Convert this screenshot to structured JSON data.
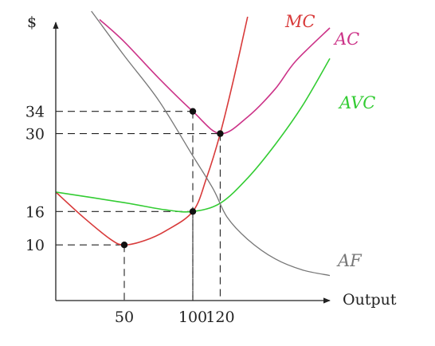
{
  "chart_data": {
    "type": "line",
    "ylabel": "$",
    "xlabel": "Output",
    "xlim": [
      0,
      200
    ],
    "ylim": [
      0,
      50
    ],
    "x_ticks": [
      {
        "value": 50,
        "label": "50"
      },
      {
        "value": 100,
        "label": "100"
      },
      {
        "value": 120,
        "label": "120"
      }
    ],
    "y_ticks": [
      {
        "value": 10,
        "label": "10"
      },
      {
        "value": 16,
        "label": "16"
      },
      {
        "value": 30,
        "label": "30"
      },
      {
        "value": 34,
        "label": "34"
      }
    ],
    "series": [
      {
        "name": "MC",
        "color": "#d83a3a",
        "points": [
          [
            0,
            19.5
          ],
          [
            20,
            15
          ],
          [
            40,
            11
          ],
          [
            50,
            10
          ],
          [
            65,
            10.8
          ],
          [
            80,
            12.5
          ],
          [
            100,
            16
          ],
          [
            110,
            22
          ],
          [
            120,
            30
          ],
          [
            130,
            40
          ],
          [
            140,
            51
          ]
        ]
      },
      {
        "name": "AC",
        "color": "#cc3388",
        "points": [
          [
            32,
            50.5
          ],
          [
            50,
            46.5
          ],
          [
            75,
            40
          ],
          [
            100,
            34
          ],
          [
            120,
            30
          ],
          [
            140,
            33
          ],
          [
            160,
            38
          ],
          [
            175,
            43
          ],
          [
            200,
            49
          ]
        ]
      },
      {
        "name": "AVC",
        "color": "#33cc33",
        "points": [
          [
            0,
            19.5
          ],
          [
            50,
            17.6
          ],
          [
            80,
            16.3
          ],
          [
            100,
            16
          ],
          [
            120,
            17.5
          ],
          [
            140,
            22
          ],
          [
            160,
            28
          ],
          [
            180,
            35
          ],
          [
            200,
            43.5
          ]
        ]
      },
      {
        "name": "AF",
        "color": "#777777",
        "points": [
          [
            26,
            52
          ],
          [
            50,
            44
          ],
          [
            75,
            36
          ],
          [
            100,
            26
          ],
          [
            115,
            20
          ],
          [
            125,
            15
          ],
          [
            140,
            11
          ],
          [
            160,
            7.5
          ],
          [
            180,
            5.5
          ],
          [
            200,
            4.5
          ]
        ]
      }
    ],
    "highlight_points": [
      {
        "x": 50,
        "y": 10
      },
      {
        "x": 100,
        "y": 16
      },
      {
        "x": 100,
        "y": 34
      },
      {
        "x": 120,
        "y": 30
      }
    ]
  }
}
